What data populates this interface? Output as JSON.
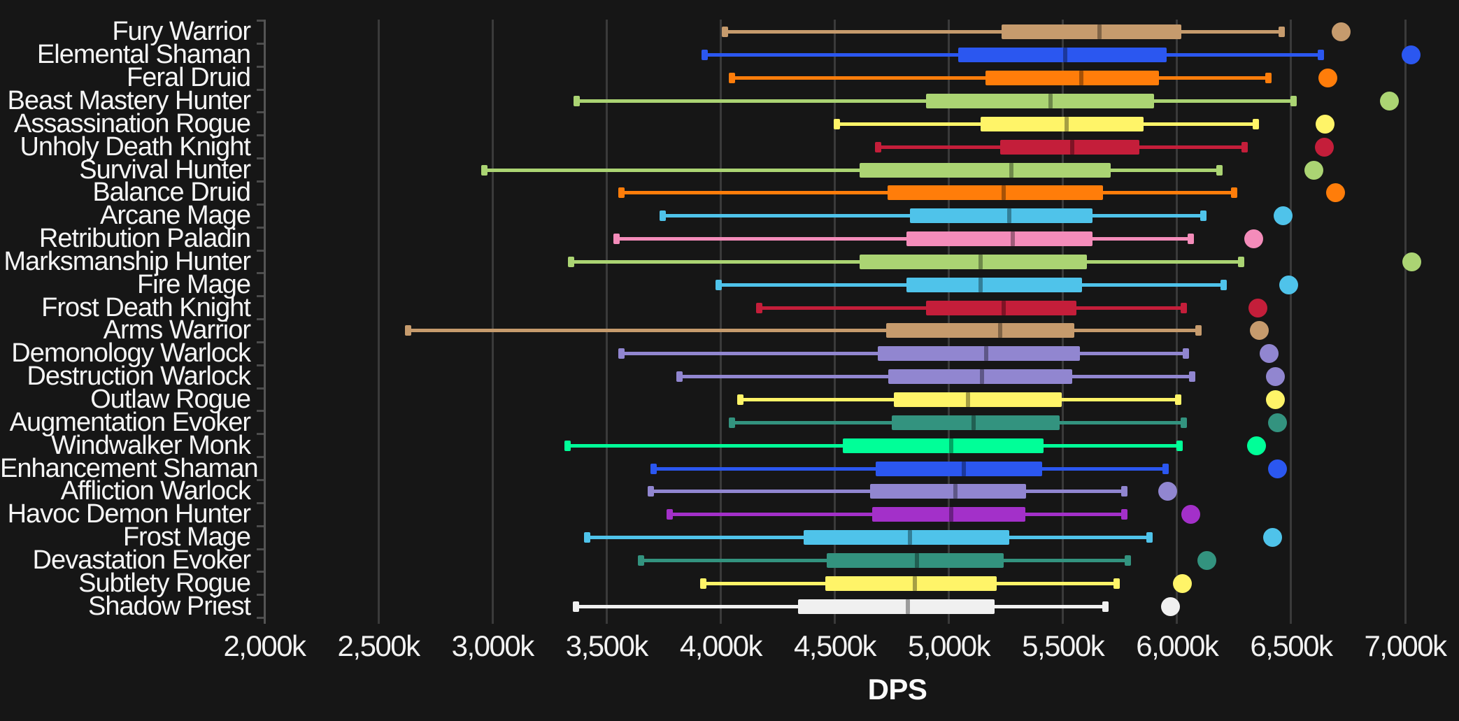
{
  "theme": {
    "background": "#161616",
    "gridline_color": "#3a3a3a",
    "axis_color": "#545454",
    "text_color": "#f5f5f5"
  },
  "chart_data": {
    "type": "boxplot",
    "orientation": "horizontal",
    "title": "",
    "xlabel": "DPS",
    "ylabel": "",
    "unit": "k (thousands of DPS)",
    "grid": "vertical",
    "legend_position": "none",
    "x_range_k": [
      2000,
      7250
    ],
    "x_ticks": [
      {
        "label": "2,000k",
        "value": 2000
      },
      {
        "label": "2,500k",
        "value": 2500
      },
      {
        "label": "3,000k",
        "value": 3000
      },
      {
        "label": "3,500k",
        "value": 3500
      },
      {
        "label": "4,000k",
        "value": 4000
      },
      {
        "label": "4,500k",
        "value": 4500
      },
      {
        "label": "5,000k",
        "value": 5000
      },
      {
        "label": "5,500k",
        "value": 5500
      },
      {
        "label": "6,000k",
        "value": 6000
      },
      {
        "label": "6,500k",
        "value": 6500
      },
      {
        "label": "7,000k",
        "value": 7000
      }
    ],
    "series": [
      {
        "label": "Fury Warrior",
        "color": "#C69B6D",
        "min": 4020,
        "q1": 5230,
        "median": 5660,
        "q3": 6020,
        "max": 6460,
        "outlier": 6720
      },
      {
        "label": "Elemental Shaman",
        "color": "#2B57F0",
        "min": 3930,
        "q1": 5040,
        "median": 5510,
        "q3": 5955,
        "max": 6630,
        "outlier": 7025
      },
      {
        "label": "Feral Druid",
        "color": "#FF7D0A",
        "min": 4050,
        "q1": 5160,
        "median": 5580,
        "q3": 5920,
        "max": 6400,
        "outlier": 6660
      },
      {
        "label": "Beast Mastery Hunter",
        "color": "#ABD473",
        "min": 3370,
        "q1": 4900,
        "median": 5445,
        "q3": 5900,
        "max": 6510,
        "outlier": 6930
      },
      {
        "label": "Assassination Rogue",
        "color": "#FFF468",
        "min": 4510,
        "q1": 5140,
        "median": 5515,
        "q3": 5855,
        "max": 6345,
        "outlier": 6650
      },
      {
        "label": "Unholy Death Knight",
        "color": "#C41E3A",
        "min": 4690,
        "q1": 5225,
        "median": 5540,
        "q3": 5835,
        "max": 6295,
        "outlier": 6645
      },
      {
        "label": "Survival Hunter",
        "color": "#ABD473",
        "min": 2965,
        "q1": 4610,
        "median": 5275,
        "q3": 5710,
        "max": 6185,
        "outlier": 6600
      },
      {
        "label": "Balance Druid",
        "color": "#FF7D0A",
        "min": 3565,
        "q1": 4730,
        "median": 5240,
        "q3": 5675,
        "max": 6250,
        "outlier": 6695
      },
      {
        "label": "Arcane Mage",
        "color": "#4FC3EA",
        "min": 3745,
        "q1": 4830,
        "median": 5265,
        "q3": 5630,
        "max": 6115,
        "outlier": 6465
      },
      {
        "label": "Retribution Paladin",
        "color": "#F48CBA",
        "min": 3545,
        "q1": 4815,
        "median": 5280,
        "q3": 5630,
        "max": 6060,
        "outlier": 6335
      },
      {
        "label": "Marksmanship Hunter",
        "color": "#ABD473",
        "min": 3345,
        "q1": 4610,
        "median": 5140,
        "q3": 5605,
        "max": 6280,
        "outlier": 7030
      },
      {
        "label": "Fire Mage",
        "color": "#4FC3EA",
        "min": 3990,
        "q1": 4815,
        "median": 5140,
        "q3": 5585,
        "max": 6205,
        "outlier": 6490
      },
      {
        "label": "Frost Death Knight",
        "color": "#C41E3A",
        "min": 4170,
        "q1": 4900,
        "median": 5240,
        "q3": 5560,
        "max": 6030,
        "outlier": 6355
      },
      {
        "label": "Arms Warrior",
        "color": "#C69B6D",
        "min": 2630,
        "q1": 4725,
        "median": 5225,
        "q3": 5550,
        "max": 6095,
        "outlier": 6360
      },
      {
        "label": "Demonology Warlock",
        "color": "#9186D0",
        "min": 3565,
        "q1": 4690,
        "median": 5165,
        "q3": 5575,
        "max": 6040,
        "outlier": 6405
      },
      {
        "label": "Destruction Warlock",
        "color": "#9186D0",
        "min": 3820,
        "q1": 4735,
        "median": 5145,
        "q3": 5540,
        "max": 6065,
        "outlier": 6430
      },
      {
        "label": "Outlaw Rogue",
        "color": "#FFF468",
        "min": 4085,
        "q1": 4760,
        "median": 5085,
        "q3": 5495,
        "max": 6005,
        "outlier": 6430
      },
      {
        "label": "Augmentation Evoker",
        "color": "#33937F",
        "min": 4050,
        "q1": 4750,
        "median": 5110,
        "q3": 5485,
        "max": 6030,
        "outlier": 6440
      },
      {
        "label": "Windwalker Monk",
        "color": "#00FF98",
        "min": 3330,
        "q1": 4535,
        "median": 5010,
        "q3": 5415,
        "max": 6010,
        "outlier": 6350
      },
      {
        "label": "Enhancement Shaman",
        "color": "#2B57F0",
        "min": 3705,
        "q1": 4680,
        "median": 5065,
        "q3": 5410,
        "max": 5950,
        "outlier": 6440
      },
      {
        "label": "Affliction Warlock",
        "color": "#9186D0",
        "min": 3695,
        "q1": 4655,
        "median": 5030,
        "q3": 5340,
        "max": 5770,
        "outlier": 5960
      },
      {
        "label": "Havoc Demon Hunter",
        "color": "#A330C9",
        "min": 3775,
        "q1": 4665,
        "median": 5010,
        "q3": 5335,
        "max": 5770,
        "outlier": 6060
      },
      {
        "label": "Frost Mage",
        "color": "#4FC3EA",
        "min": 3415,
        "q1": 4365,
        "median": 4830,
        "q3": 5265,
        "max": 5880,
        "outlier": 6420
      },
      {
        "label": "Devastation Evoker",
        "color": "#33937F",
        "min": 3650,
        "q1": 4465,
        "median": 4860,
        "q3": 5240,
        "max": 5785,
        "outlier": 6130
      },
      {
        "label": "Subtlety Rogue",
        "color": "#FFF468",
        "min": 3925,
        "q1": 4460,
        "median": 4850,
        "q3": 5210,
        "max": 5735,
        "outlier": 6025
      },
      {
        "label": "Shadow Priest",
        "color": "#F0F0F0",
        "min": 3365,
        "q1": 4340,
        "median": 4820,
        "q3": 5200,
        "max": 5685,
        "outlier": 5970
      }
    ]
  }
}
